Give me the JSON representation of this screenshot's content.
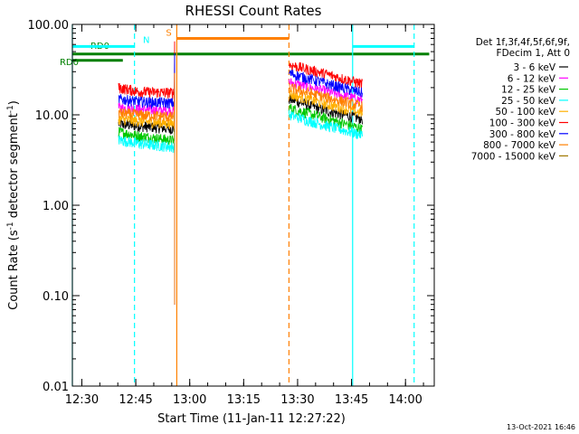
{
  "chart_data": {
    "type": "line",
    "title": "RHESSI Count Rates",
    "xlabel": "Start Time (11-Jan-11 12:27:22)",
    "ylabel_parts": [
      "Count Rate (s",
      "-1",
      " detector segment",
      "-1",
      ")"
    ],
    "y_scale": "log",
    "ylim": [
      0.01,
      100
    ],
    "y_ticks": [
      {
        "value": 0.01,
        "label": "0.01"
      },
      {
        "value": 0.1,
        "label": "0.10"
      },
      {
        "value": 1,
        "label": "1.00"
      },
      {
        "value": 10,
        "label": "10.00"
      },
      {
        "value": 100,
        "label": "100.00"
      }
    ],
    "xlim": [
      "12:27:22",
      "14:08:00"
    ],
    "x_ticks": [
      "12:30",
      "12:45",
      "13:00",
      "13:15",
      "13:30",
      "13:45",
      "14:00"
    ],
    "x_unit_start": "12:27:22",
    "data_gaps": [
      [
        "12:27:22",
        "12:40:00"
      ],
      [
        "12:56:20",
        "13:27:30"
      ],
      [
        "13:48:20",
        "14:08:00"
      ]
    ],
    "legend_header": [
      "Det 1f,3f,4f,5f,6f,9f,",
      "FDecim 1, Att 0"
    ],
    "series": [
      {
        "name": "3 - 6 keV",
        "color": "#000000",
        "seg1": [
          [
            12.67,
            8.0
          ],
          [
            12.77,
            7.5
          ],
          [
            12.93,
            7.0
          ]
        ],
        "seg2": [
          [
            13.46,
            15.0
          ],
          [
            13.64,
            11.0
          ],
          [
            13.8,
            9.0
          ]
        ]
      },
      {
        "name": "6 - 12 keV",
        "color": "#ff00ff",
        "seg1": [
          [
            12.67,
            12.0
          ],
          [
            12.77,
            11.5
          ],
          [
            12.93,
            11.0
          ]
        ],
        "seg2": [
          [
            13.46,
            23.0
          ],
          [
            13.64,
            18.0
          ],
          [
            13.8,
            14.5
          ]
        ]
      },
      {
        "name": "12 - 25 keV",
        "color": "#00c800",
        "seg1": [
          [
            12.67,
            6.5
          ],
          [
            12.77,
            5.8
          ],
          [
            12.93,
            5.2
          ]
        ],
        "seg2": [
          [
            13.46,
            12.0
          ],
          [
            13.64,
            9.0
          ],
          [
            13.8,
            7.0
          ]
        ]
      },
      {
        "name": "25 - 50 keV",
        "color": "#00ffff",
        "seg1": [
          [
            12.67,
            5.3
          ],
          [
            12.77,
            4.8
          ],
          [
            12.93,
            4.4
          ]
        ],
        "seg2": [
          [
            13.46,
            10.0
          ],
          [
            13.64,
            7.5
          ],
          [
            13.8,
            6.0
          ]
        ]
      },
      {
        "name": "50 - 100 keV",
        "color": "#ffb000",
        "seg1": [
          [
            12.67,
            9.0
          ],
          [
            12.77,
            8.5
          ],
          [
            12.93,
            8.0
          ]
        ],
        "seg2": [
          [
            13.46,
            17.0
          ],
          [
            13.64,
            13.0
          ],
          [
            13.8,
            10.5
          ]
        ]
      },
      {
        "name": "100 - 300 keV",
        "color": "#ff0000",
        "seg1": [
          [
            12.67,
            20.0
          ],
          [
            12.77,
            18.0
          ],
          [
            12.93,
            17.5
          ]
        ],
        "seg2": [
          [
            13.46,
            36.0
          ],
          [
            13.64,
            28.0
          ],
          [
            13.8,
            22.0
          ]
        ]
      },
      {
        "name": "300 - 800 keV",
        "color": "#0000ff",
        "seg1": [
          [
            12.67,
            15.0
          ],
          [
            12.77,
            14.0
          ],
          [
            12.93,
            13.5
          ]
        ],
        "seg2": [
          [
            13.46,
            29.0
          ],
          [
            13.64,
            22.0
          ],
          [
            13.8,
            17.5
          ]
        ]
      },
      {
        "name": "800 - 7000 keV",
        "color": "#ff8000",
        "seg1": [
          [
            12.67,
            10.5
          ],
          [
            12.77,
            10.0
          ],
          [
            12.93,
            9.5
          ]
        ],
        "seg2": [
          [
            13.46,
            20.0
          ],
          [
            13.64,
            15.5
          ],
          [
            13.8,
            12.5
          ]
        ]
      },
      {
        "name": "7000 - 15000 keV",
        "color": "#a07800",
        "seg1": [],
        "seg2": []
      }
    ],
    "attenuator_bars": [
      {
        "label": "RD0",
        "color": "#008000",
        "level": 40,
        "x0": 12.456,
        "x1": 12.69
      },
      {
        "label": "RD0",
        "color": "#008000",
        "level": 47,
        "x0": 12.456,
        "x1": 14.11
      },
      {
        "label": "N",
        "color": "#00ffff",
        "level": 57,
        "x0": 12.456,
        "x1": 12.744
      },
      {
        "label": "N",
        "color": "#00ffff",
        "level": 57,
        "x0": 13.755,
        "x1": 14.04
      },
      {
        "label": "S",
        "color": "#ff8000",
        "level": 70,
        "x0": 12.94,
        "x1": 13.46
      }
    ],
    "event_lines": [
      {
        "color": "#00ffff",
        "style": "solid",
        "x": 12.456
      },
      {
        "color": "#00ffff",
        "style": "dashed",
        "x": 12.744
      },
      {
        "color": "#ff8000",
        "style": "solid",
        "x": 12.94
      },
      {
        "color": "#ff8000",
        "style": "dashed",
        "x": 13.46
      },
      {
        "color": "#00ffff",
        "style": "solid",
        "x": 13.755
      },
      {
        "color": "#00ffff",
        "style": "dashed",
        "x": 14.04
      }
    ],
    "timestamp": "13-Oct-2021 16:46",
    "grid": false,
    "legend_placement": "right"
  }
}
